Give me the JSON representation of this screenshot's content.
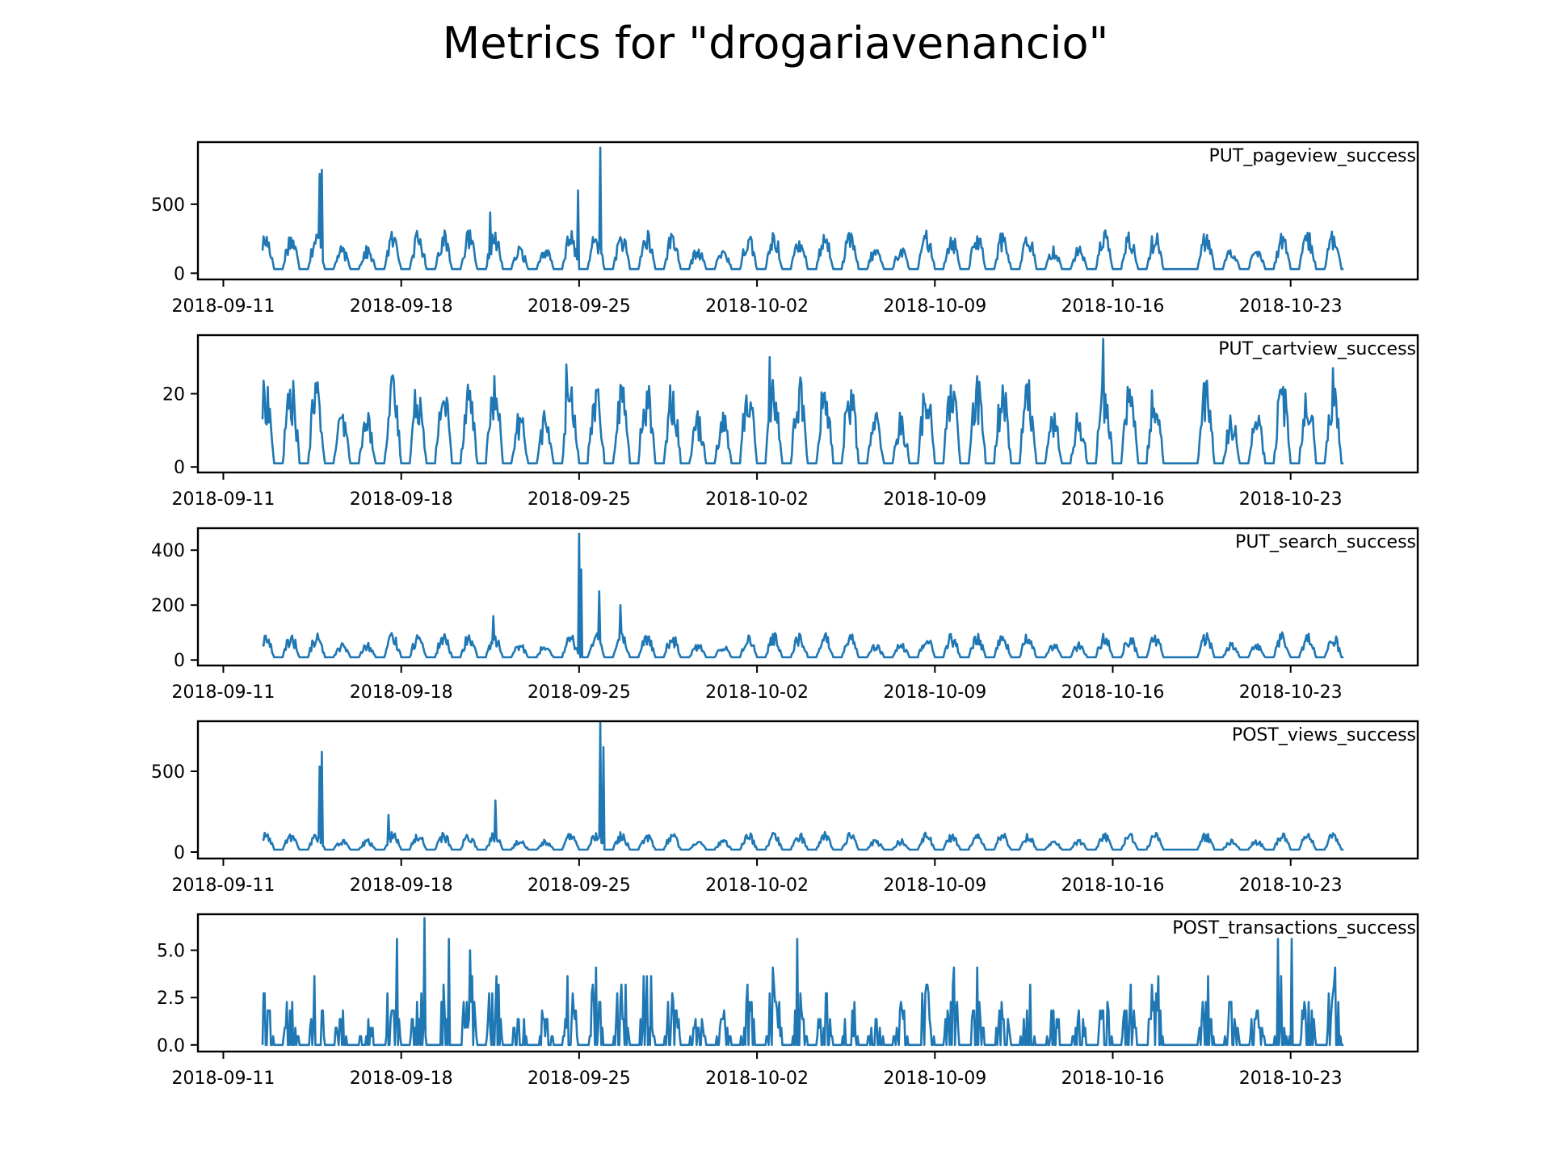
{
  "figure": {
    "title": "Metrics for \"drogariavenancio\"",
    "line_color": "#1f77b4"
  },
  "chart_data": [
    {
      "type": "line",
      "title": "",
      "xlabel": "",
      "ylabel": "",
      "series": [
        {
          "name": "PUT_pageview_success"
        }
      ],
      "x_range": [
        "2018-09-10T00:00",
        "2018-10-28T00:00"
      ],
      "x_ticks": [
        "2018-09-11",
        "2018-09-18",
        "2018-09-25",
        "2018-10-02",
        "2018-10-09",
        "2018-10-16",
        "2018-10-23"
      ],
      "y_ticks": [
        0,
        500
      ],
      "y_tick_labels": [
        "0",
        "500"
      ],
      "ylim": [
        -45,
        950
      ],
      "data_start": "2018-09-12T13:00",
      "data_end": "2018-10-25T02:00",
      "gap": [
        "2018-10-18T02:00",
        "2018-10-19T02:00"
      ],
      "daily_low": 30,
      "daily_high": 250,
      "spikes": [
        [
          "2018-09-14T21:00",
          750
        ],
        [
          "2018-09-14T19:00",
          720
        ],
        [
          "2018-09-24T23:00",
          600
        ],
        [
          "2018-09-25T20:00",
          910
        ],
        [
          "2018-09-21T12:00",
          440
        ]
      ],
      "legend": "top-right",
      "grid": false
    },
    {
      "type": "line",
      "title": "",
      "xlabel": "",
      "ylabel": "",
      "series": [
        {
          "name": "PUT_cartview_success"
        }
      ],
      "x_range": [
        "2018-09-10T00:00",
        "2018-10-28T00:00"
      ],
      "x_ticks": [
        "2018-09-11",
        "2018-09-18",
        "2018-09-25",
        "2018-10-02",
        "2018-10-09",
        "2018-10-16",
        "2018-10-23"
      ],
      "y_ticks": [
        0,
        20
      ],
      "y_tick_labels": [
        "0",
        "20"
      ],
      "ylim": [
        -1.5,
        36
      ],
      "data_start": "2018-09-12T13:00",
      "data_end": "2018-10-25T02:00",
      "gap": [
        "2018-10-18T02:00",
        "2018-10-19T02:00"
      ],
      "daily_low": 1,
      "daily_high": 20,
      "spikes": [
        [
          "2018-10-15T15:00",
          35
        ],
        [
          "2018-10-02T12:00",
          30
        ],
        [
          "2018-10-24T16:00",
          27
        ],
        [
          "2018-09-24T12:00",
          28
        ]
      ],
      "legend": "top-right",
      "grid": false
    },
    {
      "type": "line",
      "title": "",
      "xlabel": "",
      "ylabel": "",
      "series": [
        {
          "name": "PUT_search_success"
        }
      ],
      "x_range": [
        "2018-09-10T00:00",
        "2018-10-28T00:00"
      ],
      "x_ticks": [
        "2018-09-11",
        "2018-09-18",
        "2018-09-25",
        "2018-10-02",
        "2018-10-09",
        "2018-10-16",
        "2018-10-23"
      ],
      "y_ticks": [
        0,
        200,
        400
      ],
      "y_tick_labels": [
        "0",
        "200",
        "400"
      ],
      "ylim": [
        -20,
        480
      ],
      "data_start": "2018-09-12T13:00",
      "data_end": "2018-10-25T02:00",
      "gap": [
        "2018-10-18T02:00",
        "2018-10-19T02:00"
      ],
      "daily_low": 10,
      "daily_high": 80,
      "spikes": [
        [
          "2018-09-25T00:00",
          460
        ],
        [
          "2018-09-25T02:00",
          330
        ],
        [
          "2018-09-25T19:00",
          250
        ],
        [
          "2018-09-26T15:00",
          200
        ],
        [
          "2018-09-21T15:00",
          160
        ]
      ],
      "legend": "top-right",
      "grid": false
    },
    {
      "type": "line",
      "title": "",
      "xlabel": "",
      "ylabel": "",
      "series": [
        {
          "name": "POST_views_success"
        }
      ],
      "x_range": [
        "2018-09-10T00:00",
        "2018-10-28T00:00"
      ],
      "x_ticks": [
        "2018-09-11",
        "2018-09-18",
        "2018-09-25",
        "2018-10-02",
        "2018-10-09",
        "2018-10-16",
        "2018-10-23"
      ],
      "y_ticks": [
        0,
        500
      ],
      "y_tick_labels": [
        "0",
        "500"
      ],
      "ylim": [
        -40,
        810
      ],
      "data_start": "2018-09-12T13:00",
      "data_end": "2018-10-25T02:00",
      "gap": [
        "2018-10-18T02:00",
        "2018-10-19T02:00"
      ],
      "daily_low": 15,
      "daily_high": 100,
      "spikes": [
        [
          "2018-09-14T21:00",
          620
        ],
        [
          "2018-09-14T19:00",
          530
        ],
        [
          "2018-09-25T20:00",
          800
        ],
        [
          "2018-09-25T23:00",
          650
        ],
        [
          "2018-09-21T17:00",
          320
        ],
        [
          "2018-09-17T12:00",
          230
        ]
      ],
      "legend": "top-right",
      "grid": false
    },
    {
      "type": "line",
      "title": "",
      "xlabel": "",
      "ylabel": "",
      "series": [
        {
          "name": "POST_transactions_success"
        }
      ],
      "x_range": [
        "2018-09-10T00:00",
        "2018-10-28T00:00"
      ],
      "x_ticks": [
        "2018-09-11",
        "2018-09-18",
        "2018-09-25",
        "2018-10-02",
        "2018-10-09",
        "2018-10-16",
        "2018-10-23"
      ],
      "y_ticks": [
        0,
        2.5,
        5
      ],
      "y_tick_labels": [
        "0.0",
        "2.5",
        "5.0"
      ],
      "ylim": [
        -0.35,
        6.9
      ],
      "data_start": "2018-09-12T13:00",
      "data_end": "2018-10-25T02:00",
      "gap": [
        "2018-10-18T02:00",
        "2018-10-19T02:00"
      ],
      "daily_low": 0,
      "daily_high": 2.2,
      "spikes": [
        [
          "2018-09-18T22:00",
          6.7
        ],
        [
          "2018-09-17T20:00",
          5.6
        ],
        [
          "2018-10-22T12:00",
          5.6
        ],
        [
          "2018-10-23T01:00",
          5.6
        ],
        [
          "2018-10-03T14:00",
          5.6
        ],
        [
          "2018-09-19T21:00",
          5.6
        ]
      ],
      "legend": "top-right",
      "grid": false
    }
  ]
}
